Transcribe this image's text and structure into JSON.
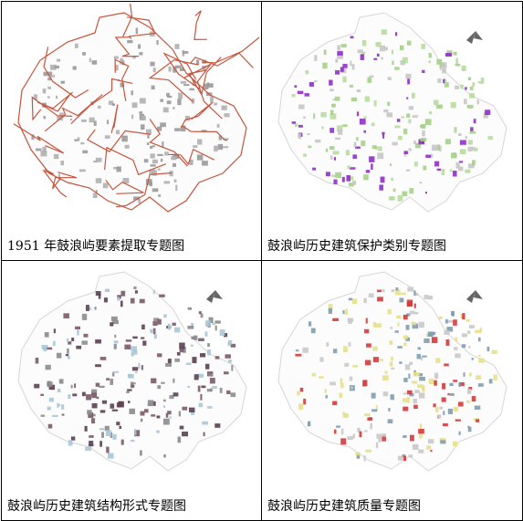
{
  "panels": [
    {
      "caption": "1951 年鼓浪屿要素提取专题图"
    },
    {
      "caption": "鼓浪屿历史建筑保护类别专题图"
    },
    {
      "caption": "鼓浪屿历史建筑结构形式专题图"
    },
    {
      "caption": "鼓浪屿历史建筑质量专题图"
    }
  ]
}
